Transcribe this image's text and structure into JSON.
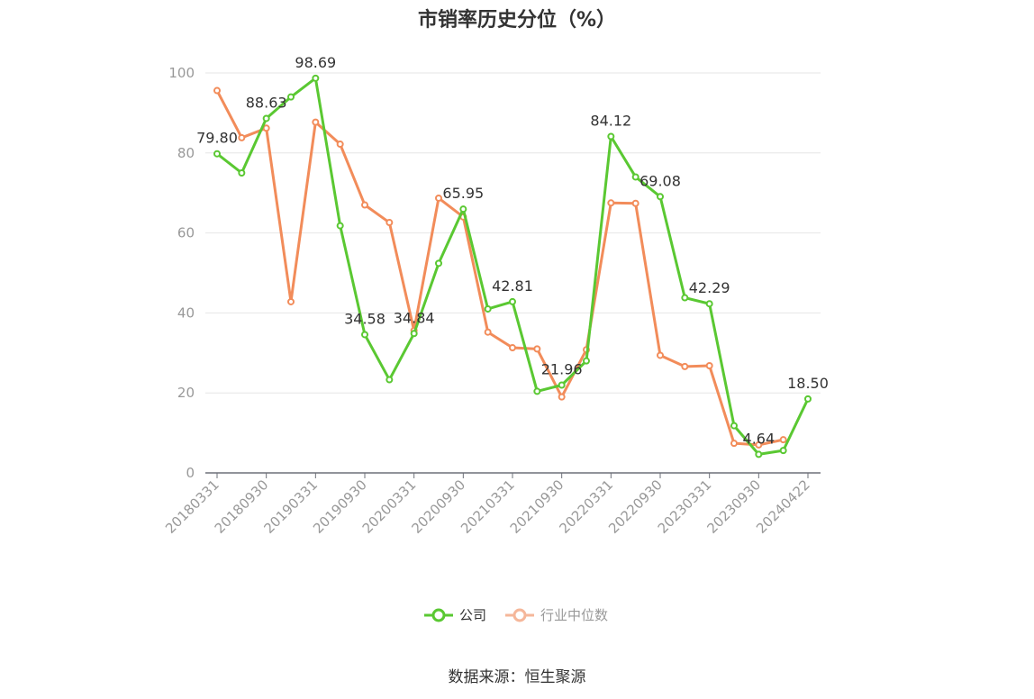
{
  "chart_data": {
    "type": "line",
    "title": "市销率历史分位（%）",
    "ylim": [
      0,
      100
    ],
    "yticks": [
      0,
      20,
      40,
      60,
      80,
      100
    ],
    "x": [
      "20180331",
      "20180630",
      "20180930",
      "20181231",
      "20190331",
      "20190630",
      "20190930",
      "20191231",
      "20200331",
      "20200630",
      "20200930",
      "20201231",
      "20210331",
      "20210630",
      "20210930",
      "20211231",
      "20220331",
      "20220630",
      "20220930",
      "20221231",
      "20230331",
      "20230630",
      "20230930",
      "20231231",
      "20240422"
    ],
    "xtick_labels": [
      "20180331",
      "20180930",
      "20190331",
      "20190930",
      "20200331",
      "20200930",
      "20210331",
      "20210930",
      "20220331",
      "20220930",
      "20230331",
      "20230930",
      "20240422"
    ],
    "series": [
      {
        "name": "公司",
        "color": "#5ac832",
        "values": [
          79.8,
          75.0,
          88.63,
          94.0,
          98.69,
          61.8,
          34.58,
          23.3,
          34.84,
          52.4,
          65.95,
          41.0,
          42.81,
          20.4,
          21.96,
          28.0,
          84.12,
          74.0,
          69.08,
          43.8,
          42.29,
          11.8,
          4.64,
          5.6,
          18.5
        ],
        "labels": {
          "0": "79.80",
          "2": "88.63",
          "4": "98.69",
          "6": "34.58",
          "8": "34.84",
          "10": "65.95",
          "12": "42.81",
          "14": "21.96",
          "16": "84.12",
          "18": "69.08",
          "20": "42.29",
          "22": "4.64",
          "24": "18.50"
        }
      },
      {
        "name": "行业中位数",
        "color": "#f28c5a",
        "values": [
          95.6,
          83.8,
          86.2,
          42.8,
          87.7,
          82.2,
          67.0,
          62.6,
          35.6,
          68.7,
          64.0,
          35.2,
          31.3,
          31.0,
          19.0,
          30.8,
          67.5,
          67.4,
          29.4,
          26.6,
          26.8,
          7.4,
          7.0,
          8.3,
          null
        ]
      }
    ],
    "legend_position": "bottom-center",
    "grid": true
  },
  "source": "数据来源：恒生聚源"
}
